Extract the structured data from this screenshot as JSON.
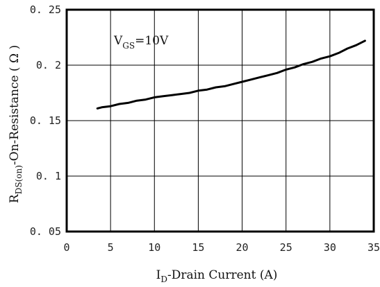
{
  "chart_data": {
    "type": "line",
    "title": "",
    "xlabel": {
      "main": "I",
      "sub": "D",
      "rest": "-Drain Current (A)"
    },
    "ylabel": {
      "main": "R",
      "sub": "DS(on)",
      "rest": "-On-Resistance ( Ω )"
    },
    "annotation": {
      "main": "V",
      "sub": "GS",
      "rest": "=10V"
    },
    "xlim": [
      0,
      35
    ],
    "ylim": [
      0.05,
      0.25
    ],
    "x_ticks": [
      0,
      5,
      10,
      15,
      20,
      25,
      30,
      35
    ],
    "x_tick_labels": [
      "0",
      "5",
      "10",
      "15",
      "20",
      "25",
      "30",
      "35"
    ],
    "y_ticks": [
      0.05,
      0.1,
      0.15,
      0.2,
      0.25
    ],
    "y_tick_labels": [
      "0. 05",
      "0. 1",
      "0. 15",
      "0. 2",
      "0. 25"
    ],
    "grid": true,
    "series": [
      {
        "x": [
          3.5,
          4.0,
          5.0,
          6.0,
          7.0,
          8.0,
          9.0,
          10.0,
          11.0,
          12.0,
          13.0,
          14.0,
          15.0,
          16.0,
          17.0,
          18.0,
          19.0,
          20.0,
          21.0,
          22.0,
          23.0,
          24.0,
          25.0,
          26.0,
          27.0,
          28.0,
          29.0,
          30.0,
          31.0,
          32.0,
          33.0,
          34.0
        ],
        "y": [
          0.161,
          0.162,
          0.163,
          0.165,
          0.166,
          0.168,
          0.169,
          0.171,
          0.172,
          0.173,
          0.174,
          0.175,
          0.177,
          0.178,
          0.18,
          0.181,
          0.183,
          0.185,
          0.187,
          0.189,
          0.191,
          0.193,
          0.196,
          0.198,
          0.201,
          0.203,
          0.206,
          0.208,
          0.211,
          0.215,
          0.218,
          0.222
        ]
      }
    ]
  },
  "colors": {
    "line": "#000000",
    "grid": "#000000",
    "background": "#ffffff"
  }
}
